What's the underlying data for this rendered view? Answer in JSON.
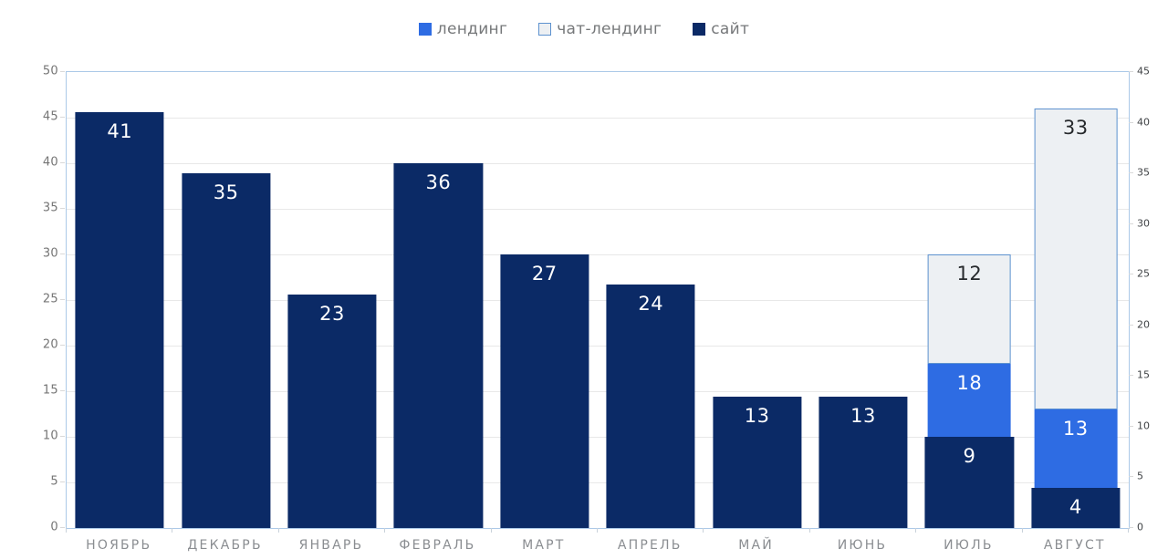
{
  "chart_data": {
    "type": "bar",
    "variant": "stacked-combo-dual-axis",
    "title": "",
    "legend_position": "top",
    "grid": true,
    "categories": [
      "НОЯБРЬ",
      "ДЕКАБРЬ",
      "ЯНВАРЬ",
      "ФЕВРАЛЬ",
      "МАРТ",
      "АПРЕЛЬ",
      "МАЙ",
      "ИЮНЬ",
      "ИЮЛЬ",
      "АВГУСТ"
    ],
    "series": [
      {
        "name": "лендинг",
        "axis": "left",
        "color": "#2e6ce3",
        "border_color": "",
        "label_color": "#ffffff",
        "values": [
          0,
          0,
          0,
          0,
          0,
          0,
          0,
          0,
          18,
          13
        ]
      },
      {
        "name": "чат-лендинг",
        "axis": "left",
        "color": "#edf0f3",
        "border_color": "#5d92cf",
        "label_color": "#26292c",
        "values": [
          0,
          0,
          0,
          0,
          0,
          0,
          0,
          0,
          12,
          33
        ]
      },
      {
        "name": "сайт",
        "axis": "right",
        "color": "#0b2a66",
        "border_color": "",
        "label_color": "#ffffff",
        "values": [
          41,
          35,
          23,
          36,
          27,
          24,
          13,
          13,
          9,
          4
        ]
      }
    ],
    "left_axis": {
      "min": 0,
      "max": 50,
      "step": 5,
      "tick_labels": [
        "50",
        "45",
        "40",
        "35",
        "30",
        "25",
        "20",
        "15",
        "10",
        "5",
        "0"
      ]
    },
    "right_axis": {
      "min": 0,
      "max": 45,
      "step": 5,
      "tick_labels": [
        "45",
        "40",
        "35",
        "30",
        "25",
        "20",
        "15",
        "10",
        "5",
        "0"
      ]
    }
  },
  "colors": {
    "background": "#ffffff",
    "plot_border": "#abc9e8",
    "gridline": "#e8e8e8",
    "left_axis_text": "#757575",
    "right_axis_text": "#3f4245",
    "x_axis_text": "#8a8d91",
    "legend_text": "#76787a"
  }
}
